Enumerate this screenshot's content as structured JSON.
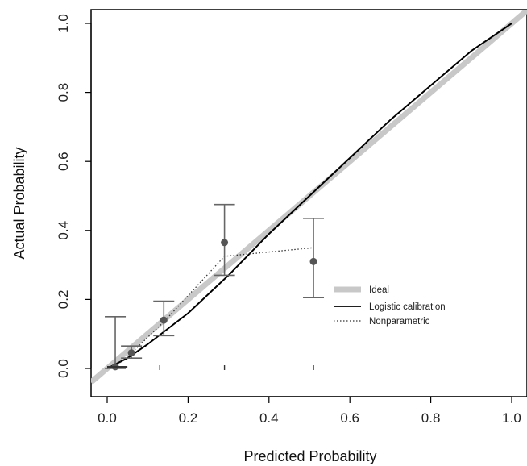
{
  "chart_data": {
    "type": "line",
    "xlabel": "Predicted Probability",
    "ylabel": "Actual Probability",
    "xlim": [
      0,
      1
    ],
    "ylim": [
      0,
      1
    ],
    "x_ticks": [
      "0.0",
      "0.2",
      "0.4",
      "0.6",
      "0.8",
      "1.0"
    ],
    "y_ticks": [
      "0.0",
      "0.2",
      "0.4",
      "0.6",
      "0.8",
      "1.0"
    ],
    "grid": false,
    "legend_position": "center-right",
    "series": [
      {
        "name": "Ideal",
        "style": "thick-gray",
        "color": "#c8c8c8",
        "x": [
          -0.04,
          1.04
        ],
        "y": [
          -0.04,
          1.04
        ]
      },
      {
        "name": "Logistic calibration",
        "style": "solid",
        "color": "#000000",
        "x": [
          0.0,
          0.05,
          0.1,
          0.2,
          0.3,
          0.4,
          0.5,
          0.6,
          0.7,
          0.8,
          0.9,
          1.0
        ],
        "y": [
          0.0,
          0.03,
          0.07,
          0.16,
          0.27,
          0.39,
          0.5,
          0.61,
          0.72,
          0.82,
          0.92,
          1.0
        ]
      },
      {
        "name": "Nonparametric",
        "style": "dotted",
        "color": "#333333",
        "x": [
          0.02,
          0.06,
          0.14,
          0.29,
          0.51
        ],
        "y": [
          0.005,
          0.045,
          0.135,
          0.325,
          0.35
        ]
      }
    ],
    "grouped_points": [
      {
        "x": 0.02,
        "y": 0.005,
        "lower": 0.0,
        "upper": 0.15
      },
      {
        "x": 0.06,
        "y": 0.045,
        "lower": 0.03,
        "upper": 0.065
      },
      {
        "x": 0.14,
        "y": 0.14,
        "lower": 0.095,
        "upper": 0.195
      },
      {
        "x": 0.29,
        "y": 0.365,
        "lower": 0.27,
        "upper": 0.475
      },
      {
        "x": 0.51,
        "y": 0.31,
        "lower": 0.205,
        "upper": 0.435
      }
    ],
    "rug_x": [
      0.13,
      0.29,
      0.51
    ]
  }
}
